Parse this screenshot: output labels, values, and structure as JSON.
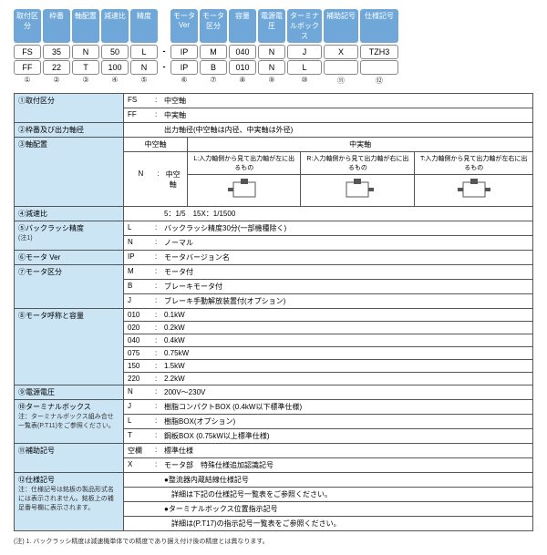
{
  "headers": [
    "取付区分",
    "枠番",
    "軸配置",
    "減速比",
    "精度",
    "",
    "モータVer",
    "モータ区分",
    "容量",
    "電源電圧",
    "ターミナルボックス",
    "補助記号",
    "仕様記号"
  ],
  "row1": [
    "FS",
    "35",
    "N",
    "50",
    "L",
    "-",
    "IP",
    "M",
    "040",
    "N",
    "J",
    "X",
    "TZH3"
  ],
  "row2": [
    "FF",
    "22",
    "T",
    "100",
    "N",
    "-",
    "IP",
    "B",
    "010",
    "N",
    "L",
    "",
    ""
  ],
  "nums": [
    "①",
    "②",
    "③",
    "④",
    "⑤",
    "",
    "⑥",
    "⑦",
    "⑧",
    "⑨",
    "⑩",
    "⑪",
    "⑫"
  ],
  "specs": [
    {
      "num": "①",
      "label": "取付区分",
      "rows": [
        {
          "c": "FS",
          "s": ":",
          "v": "中空軸"
        },
        {
          "c": "FF",
          "s": ":",
          "v": "中実軸"
        }
      ]
    },
    {
      "num": "②",
      "label": "枠番及び出力軸径",
      "rows": [
        {
          "c": "",
          "s": "",
          "v": "出力軸径(中空軸は内径、中実軸は外径)"
        }
      ]
    },
    {
      "num": "④",
      "label": "減速比",
      "rows": [
        {
          "c": "",
          "s": "",
          "v": "5：1/5　15X：1/1500"
        }
      ]
    },
    {
      "num": "⑤",
      "label": "バックラッシ精度",
      "note": "(注1)",
      "rows": [
        {
          "c": "L",
          "s": ":",
          "v": "バックラッシ精度30分(一部機種除く)"
        },
        {
          "c": "N",
          "s": ":",
          "v": "ノーマル"
        }
      ]
    },
    {
      "num": "⑥",
      "label": "モータ Ver",
      "rows": [
        {
          "c": "IP",
          "s": ":",
          "v": "モータバージョン名"
        }
      ]
    },
    {
      "num": "⑦",
      "label": "モータ区分",
      "rows": [
        {
          "c": "M",
          "s": ":",
          "v": "モータ付"
        },
        {
          "c": "B",
          "s": ":",
          "v": "ブレーキモータ付"
        },
        {
          "c": "J",
          "s": ":",
          "v": "ブレーキ手動解放装置付(オプション)"
        }
      ]
    },
    {
      "num": "⑧",
      "label": "モータ呼称と容量",
      "rows": [
        {
          "c": "010",
          "s": ":",
          "v": "0.1kW"
        },
        {
          "c": "020",
          "s": ":",
          "v": "0.2kW"
        },
        {
          "c": "040",
          "s": ":",
          "v": "0.4kW"
        },
        {
          "c": "075",
          "s": ":",
          "v": "0.75kW"
        },
        {
          "c": "150",
          "s": ":",
          "v": "1.5kW"
        },
        {
          "c": "220",
          "s": ":",
          "v": "2.2kW"
        }
      ]
    },
    {
      "num": "⑨",
      "label": "電源電圧",
      "rows": [
        {
          "c": "N",
          "s": ":",
          "v": "200V～230V"
        }
      ]
    },
    {
      "num": "⑩",
      "label": "ターミナルボックス",
      "note": "注：ターミナルボックス組み合せ一覧表(P.T11)をご参照ください。",
      "rows": [
        {
          "c": "J",
          "s": ":",
          "v": "樹脂コンパクトBOX (0.4kW以下標準仕様)"
        },
        {
          "c": "L",
          "s": ":",
          "v": "樹脂BOX(オプション)"
        },
        {
          "c": "T",
          "s": ":",
          "v": "鋼板BOX (0.75kW以上標準仕様)"
        }
      ]
    },
    {
      "num": "⑪",
      "label": "補助記号",
      "rows": [
        {
          "c": "空欄",
          "s": ":",
          "v": "標準仕様"
        },
        {
          "c": "X",
          "s": ":",
          "v": "モータ部　特殊仕様追加認識記号"
        }
      ]
    },
    {
      "num": "⑫",
      "label": "仕様記号",
      "note": "注：仕様記号は銘板の製品形式名には表示されません。銘板上の補足番号欄に表示されます。",
      "rows": [
        {
          "c": "",
          "s": "",
          "v": "●整流器内蔵結線仕様記号"
        },
        {
          "c": "",
          "s": "",
          "v": "　詳細は下記の仕様記号一覧表をご参照ください。"
        },
        {
          "c": "",
          "s": "",
          "v": "●ターミナルボックス位置指示記号"
        },
        {
          "c": "",
          "s": "",
          "v": "　詳細は(P.T17)の指示記号一覧表をご参照ください。"
        }
      ]
    }
  ],
  "shaft": {
    "num": "③",
    "label": "軸配置",
    "top_headers": [
      "中空軸",
      "中実軸"
    ],
    "cols": [
      {
        "c": "N",
        "s": ":",
        "v": "中空軸"
      },
      {
        "desc": "L:入力軸側から見て出力軸が左に出るもの"
      },
      {
        "desc": "R:入力軸側から見て出力軸が右に出るもの"
      },
      {
        "desc": "T:入力軸側から見て出力軸が左右に出るもの"
      }
    ]
  },
  "footnote": "(注) 1. バックラッシ精度は減速機単体での精度であり据え付け後の精度とは異なります。"
}
